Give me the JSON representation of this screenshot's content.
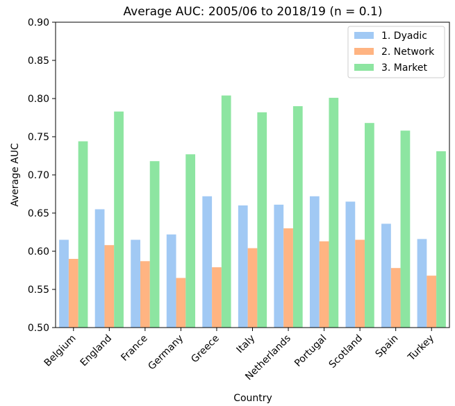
{
  "chart_data": {
    "type": "bar",
    "title": "Average AUC: 2005/06 to 2018/19 (n = 0.1)",
    "xlabel": "Country",
    "ylabel": "Average AUC",
    "ylim": [
      0.5,
      0.9
    ],
    "yticks": [
      "0.50",
      "0.55",
      "0.60",
      "0.65",
      "0.70",
      "0.75",
      "0.80",
      "0.85",
      "0.90"
    ],
    "grid": false,
    "legend_position": "top-right",
    "categories": [
      "Belgium",
      "England",
      "France",
      "Germany",
      "Greece",
      "Italy",
      "Netherlands",
      "Portugal",
      "Scotland",
      "Spain",
      "Turkey"
    ],
    "series": [
      {
        "name": "1. Dyadic",
        "color": "#a1c9f4",
        "values": [
          0.615,
          0.655,
          0.615,
          0.622,
          0.672,
          0.66,
          0.661,
          0.672,
          0.665,
          0.636,
          0.616
        ]
      },
      {
        "name": "2. Network",
        "color": "#ffb482",
        "values": [
          0.59,
          0.608,
          0.587,
          0.565,
          0.579,
          0.604,
          0.63,
          0.613,
          0.615,
          0.578,
          0.568
        ]
      },
      {
        "name": "3. Market",
        "color": "#8de5a1",
        "values": [
          0.744,
          0.783,
          0.718,
          0.727,
          0.804,
          0.782,
          0.79,
          0.801,
          0.768,
          0.758,
          0.731
        ]
      }
    ]
  }
}
